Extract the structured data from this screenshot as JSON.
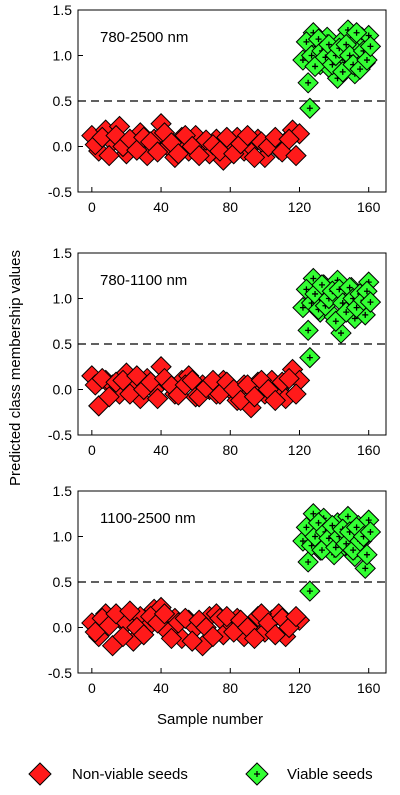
{
  "colors": {
    "nonviable": "#ff1a1a",
    "viable": "#33ff33",
    "outline": "#000000"
  },
  "legend": {
    "placement": "bottom",
    "items": [
      "Non-viable seeds",
      "Viable seeds"
    ]
  },
  "chart_data": {
    "type": "scatter",
    "ylabel": "Predicted class membership values",
    "xlabel": "Sample number",
    "threshold": 0.5,
    "panels": [
      {
        "label": "780-2500 nm",
        "xlim": [
          -8,
          170
        ],
        "ylim": [
          -0.5,
          1.5
        ],
        "xticks": [
          0,
          40,
          80,
          120,
          160
        ],
        "yticks": [
          "-0.5",
          "0.0",
          "0.5",
          "1.0",
          "1.5"
        ],
        "series": [
          {
            "name": "Non-viable seeds",
            "x": [
              0,
              4,
              8,
              12,
              16,
              20,
              24,
              28,
              32,
              36,
              40,
              44,
              48,
              52,
              56,
              60,
              64,
              68,
              72,
              76,
              80,
              84,
              88,
              92,
              96,
              100,
              104,
              108,
              112,
              116,
              120,
              2,
              6,
              10,
              14,
              18,
              22,
              26,
              30,
              34,
              38,
              42,
              46,
              50,
              54,
              58,
              62,
              66,
              70,
              74,
              78,
              82,
              86,
              90,
              94,
              98,
              102,
              106,
              110,
              114,
              118
            ],
            "y": [
              0.12,
              -0.05,
              0.18,
              0.05,
              0.22,
              -0.08,
              0.02,
              0.15,
              -0.1,
              0.08,
              0.25,
              0.0,
              -0.12,
              0.1,
              -0.05,
              0.12,
              0.03,
              -0.08,
              0.08,
              -0.15,
              0.05,
              0.1,
              -0.05,
              0.0,
              0.08,
              -0.12,
              0.06,
              -0.03,
              0.05,
              0.18,
              0.14,
              0.02,
              0.1,
              -0.1,
              0.12,
              0.0,
              0.08,
              -0.04,
              0.1,
              0.05,
              -0.06,
              0.15,
              0.04,
              -0.08,
              0.12,
              0.0,
              -0.1,
              0.07,
              0.02,
              -0.05,
              0.1,
              -0.08,
              0.03,
              0.12,
              -0.12,
              0.05,
              0.0,
              0.1,
              -0.06,
              0.08,
              -0.1
            ]
          },
          {
            "name": "Viable seeds",
            "x": [
              122,
              125,
              126,
              128,
              130,
              132,
              134,
              136,
              138,
              140,
              142,
              144,
              146,
              148,
              150,
              152,
              154,
              156,
              158,
              160,
              124,
              127,
              129,
              131,
              133,
              135,
              137,
              139,
              141,
              143,
              145,
              147,
              149,
              151,
              153,
              155,
              157,
              159,
              161
            ],
            "y": [
              0.95,
              0.7,
              0.42,
              1.25,
              1.1,
              0.9,
              1.05,
              1.2,
              0.85,
              1.0,
              0.75,
              1.15,
              0.95,
              1.28,
              1.1,
              0.8,
              1.05,
              1.2,
              0.92,
              1.22,
              1.15,
              1.0,
              0.88,
              1.18,
              1.05,
              0.98,
              1.12,
              0.9,
              1.0,
              1.08,
              0.82,
              1.12,
              1.0,
              0.9,
              1.25,
              0.85,
              1.05,
              0.95,
              1.1
            ]
          }
        ]
      },
      {
        "label": "780-1100 nm",
        "xlim": [
          -8,
          170
        ],
        "ylim": [
          -0.5,
          1.5
        ],
        "xticks": [
          0,
          40,
          80,
          120,
          160
        ],
        "yticks": [
          "-0.5",
          "0.0",
          "0.5",
          "1.0",
          "1.5"
        ],
        "series": [
          {
            "name": "Non-viable seeds",
            "x": [
              0,
              4,
              8,
              12,
              16,
              20,
              24,
              28,
              32,
              36,
              40,
              44,
              48,
              52,
              56,
              60,
              64,
              68,
              72,
              76,
              80,
              84,
              88,
              92,
              96,
              100,
              104,
              108,
              112,
              116,
              120,
              2,
              6,
              10,
              14,
              18,
              22,
              26,
              30,
              34,
              38,
              42,
              46,
              50,
              54,
              58,
              62,
              66,
              70,
              74,
              78,
              82,
              86,
              90,
              94,
              98,
              102,
              106,
              110,
              114,
              118
            ],
            "y": [
              0.15,
              -0.18,
              0.1,
              0.05,
              -0.05,
              0.18,
              0.02,
              -0.1,
              0.12,
              0.0,
              0.25,
              0.08,
              -0.05,
              0.1,
              0.15,
              -0.08,
              0.05,
              0.0,
              -0.05,
              0.1,
              0.0,
              -0.12,
              0.05,
              -0.2,
              0.08,
              -0.05,
              0.1,
              0.0,
              -0.1,
              0.22,
              0.1,
              0.05,
              0.12,
              -0.08,
              0.08,
              0.1,
              -0.05,
              0.15,
              0.0,
              0.08,
              -0.1,
              0.12,
              0.04,
              -0.06,
              0.05,
              0.1,
              -0.08,
              0.02,
              0.1,
              -0.05,
              0.08,
              0.0,
              -0.12,
              0.05,
              -0.08,
              0.1,
              0.0,
              -0.12,
              0.08,
              0.12,
              -0.05
            ]
          },
          {
            "name": "Viable seeds",
            "x": [
              122,
              125,
              126,
              128,
              130,
              132,
              134,
              136,
              138,
              140,
              142,
              144,
              146,
              148,
              150,
              152,
              154,
              156,
              158,
              160,
              124,
              127,
              129,
              131,
              133,
              135,
              137,
              139,
              141,
              143,
              145,
              147,
              149,
              151,
              153,
              155,
              157,
              159,
              161
            ],
            "y": [
              0.9,
              0.65,
              0.35,
              1.22,
              1.05,
              0.85,
              1.15,
              0.95,
              1.1,
              0.8,
              1.2,
              0.62,
              1.0,
              0.9,
              1.12,
              0.78,
              1.05,
              1.0,
              0.82,
              1.18,
              1.1,
              0.95,
              1.05,
              0.88,
              1.15,
              0.92,
              1.0,
              1.08,
              0.75,
              1.1,
              0.95,
              0.85,
              1.12,
              1.0,
              0.9,
              1.05,
              0.98,
              1.08,
              0.96
            ]
          }
        ]
      },
      {
        "label": "1100-2500 nm",
        "xlim": [
          -8,
          170
        ],
        "ylim": [
          -0.5,
          1.5
        ],
        "xticks": [
          0,
          40,
          80,
          120,
          160
        ],
        "yticks": [
          "-0.5",
          "0.0",
          "0.5",
          "1.0",
          "1.5"
        ],
        "series": [
          {
            "name": "Non-viable seeds",
            "x": [
              0,
              4,
              8,
              12,
              16,
              20,
              24,
              28,
              32,
              36,
              40,
              44,
              48,
              52,
              56,
              60,
              64,
              68,
              72,
              76,
              80,
              84,
              88,
              92,
              96,
              100,
              104,
              108,
              112,
              116,
              120,
              2,
              6,
              10,
              14,
              18,
              22,
              26,
              30,
              34,
              38,
              42,
              46,
              50,
              54,
              58,
              62,
              66,
              70,
              74,
              78,
              82,
              86,
              90,
              94,
              98,
              102,
              106,
              110,
              114,
              118
            ],
            "y": [
              0.05,
              -0.1,
              0.15,
              -0.2,
              0.1,
              0.05,
              -0.15,
              0.12,
              0.0,
              0.2,
              0.22,
              -0.05,
              0.1,
              -0.12,
              0.08,
              0.0,
              -0.2,
              0.12,
              0.15,
              -0.08,
              0.05,
              0.1,
              -0.1,
              0.0,
              0.12,
              -0.05,
              0.08,
              0.15,
              -0.1,
              0.05,
              0.08,
              -0.05,
              0.1,
              0.02,
              0.15,
              -0.1,
              0.18,
              0.0,
              -0.08,
              0.12,
              0.05,
              0.15,
              -0.12,
              0.05,
              0.1,
              -0.15,
              0.08,
              0.0,
              -0.1,
              0.1,
              0.12,
              -0.05,
              0.08,
              0.0,
              -0.12,
              0.15,
              0.05,
              -0.08,
              0.1,
              0.0,
              0.12
            ]
          },
          {
            "name": "Viable seeds",
            "x": [
              122,
              125,
              126,
              128,
              130,
              132,
              134,
              136,
              138,
              140,
              142,
              144,
              146,
              148,
              150,
              152,
              154,
              156,
              158,
              160,
              124,
              127,
              129,
              131,
              133,
              135,
              137,
              139,
              141,
              143,
              145,
              147,
              149,
              151,
              153,
              155,
              157,
              159,
              161
            ],
            "y": [
              0.95,
              0.72,
              0.4,
              1.25,
              1.05,
              0.85,
              1.2,
              0.95,
              1.1,
              0.8,
              1.15,
              1.0,
              0.9,
              1.22,
              1.05,
              0.78,
              1.12,
              0.95,
              0.65,
              1.18,
              1.1,
              0.9,
              1.0,
              1.15,
              0.85,
              1.05,
              0.98,
              1.12,
              0.88,
              1.0,
              1.08,
              0.92,
              1.05,
              0.85,
              1.1,
              0.95,
              1.0,
              0.8,
              1.05
            ]
          }
        ]
      }
    ]
  }
}
